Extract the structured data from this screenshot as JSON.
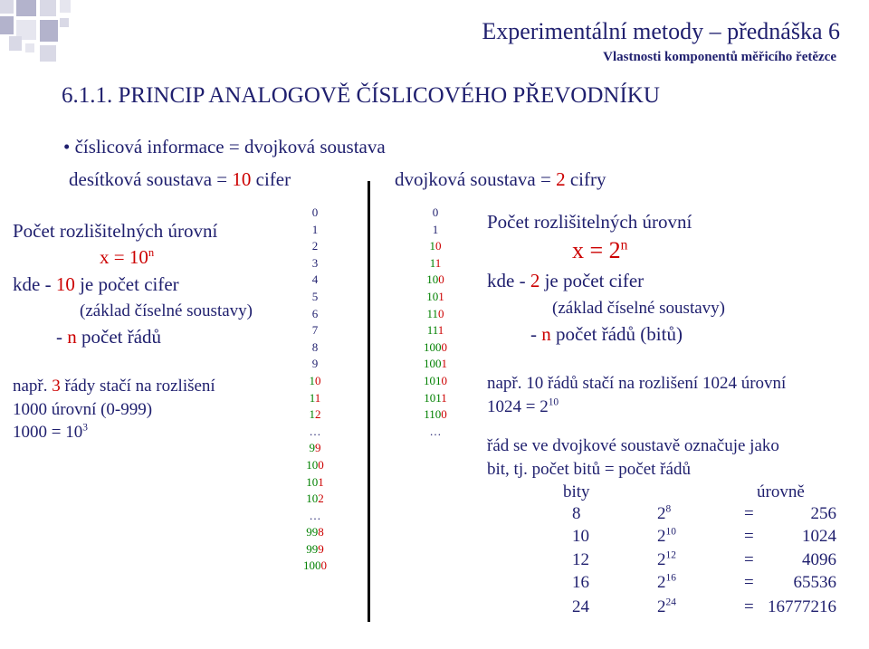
{
  "header": {
    "title": "Experimentální metody – přednáška 6",
    "subtitle": "Vlastnosti komponentů měřicího řetězce"
  },
  "section_title": "6.1.1. PRINCIP ANALOGOVĚ ČÍSLICOVÉHO PŘEVODNÍKU",
  "bullet": "číslicová informace = dvojková soustava",
  "decimal_header": {
    "prefix": "desítková soustava = ",
    "num": "10",
    "suffix": " cifer"
  },
  "binary_header": {
    "prefix": "dvojková soustava = ",
    "num": "2",
    "suffix": " cifry"
  },
  "left": {
    "line1": "Počet rozlišitelných úrovní",
    "formula_base": "x = 10",
    "formula_exp": "n",
    "line3_prefix": "kde - ",
    "line3_num": "10",
    "line3_suffix": " je počet cifer",
    "line4": "(základ číselné soustavy)",
    "line5_prefix": "- ",
    "line5_n": "n",
    "line5_suffix": " počet řádů",
    "ex1_prefix": "např. ",
    "ex1_num": "3",
    "ex1_suffix": " řády stačí na rozlišení",
    "ex2": "1000 úrovní (0-999)",
    "ex3_base": "1000 = 10",
    "ex3_exp": "3"
  },
  "decimal_column": [
    "0",
    "1",
    "2",
    "3",
    "4",
    "5",
    "6",
    "7",
    "8",
    "9",
    "10",
    "11",
    "12",
    "…",
    "99",
    "100",
    "101",
    "102",
    "…",
    "998",
    "999",
    "1000"
  ],
  "binary_column": [
    "0",
    "1",
    "10",
    "11",
    "100",
    "101",
    "110",
    "111",
    "1000",
    "1001",
    "1010",
    "1011",
    "1100",
    "…"
  ],
  "right": {
    "line1": "Počet rozlišitelných úrovní",
    "formula_base": "x = 2",
    "formula_exp": "n",
    "line3_prefix": "kde - ",
    "line3_num": "2",
    "line3_suffix": " je počet cifer",
    "line4": "(základ číselné soustavy)",
    "line5_prefix": "- ",
    "line5_n": "n",
    "line5_suffix": " počet řádů (bitů)",
    "ex1": "např. 10 řádů stačí na rozlišení 1024 úrovní",
    "ex2_base": "1024 = 2",
    "ex2_exp": "10",
    "note1": "řád se ve dvojkové soustavě označuje jako",
    "note2": "bit, tj. počet bitů = počet řádů"
  },
  "bits_table": {
    "headers": [
      "bity",
      "úrovně"
    ],
    "rows": [
      {
        "bits": "8",
        "base": "2",
        "exp": "8",
        "eq": "=",
        "levels": "256"
      },
      {
        "bits": "10",
        "base": "2",
        "exp": "10",
        "eq": "=",
        "levels": "1024"
      },
      {
        "bits": "12",
        "base": "2",
        "exp": "12",
        "eq": "=",
        "levels": "4096"
      },
      {
        "bits": "16",
        "base": "2",
        "exp": "16",
        "eq": "=",
        "levels": "65536"
      },
      {
        "bits": "24",
        "base": "2",
        "exp": "24",
        "eq": "=",
        "levels": "16777216"
      }
    ]
  },
  "colors": {
    "navy": "#1f1f6e",
    "red": "#cc0000",
    "green": "#008000"
  }
}
